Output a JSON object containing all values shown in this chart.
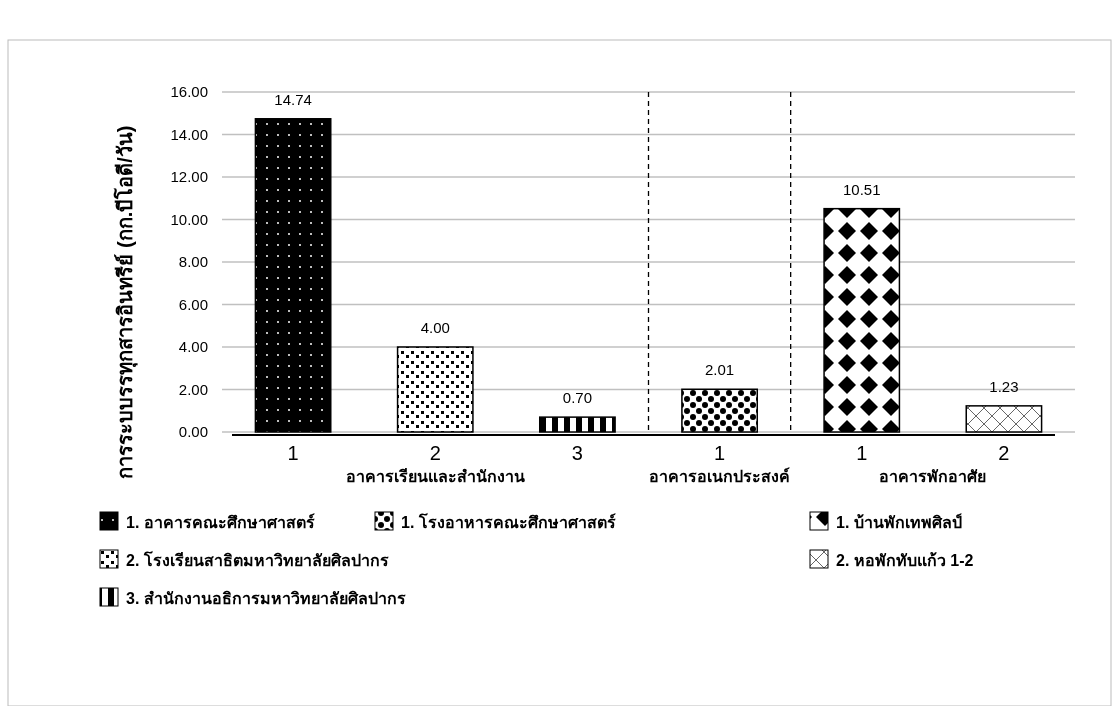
{
  "chart_data": {
    "type": "bar",
    "ylabel": "การระบบรรทุกสารอินทรีย์ (กก.บีโอดี/วัน)",
    "categories": [
      "1",
      "2",
      "3",
      "1",
      "1",
      "2"
    ],
    "series": [
      {
        "name": "1. อาคารคณะศึกษาศาสตร์",
        "color": "#000000",
        "values": [
          14.74,
          null,
          null,
          null,
          null,
          null
        ],
        "value_labels": [
          "14.74",
          null,
          null,
          null,
          null,
          null
        ]
      },
      {
        "name": "2. โรงเรียนสาธิตมหาวิทยาลัยศิลปากร",
        "color": "#000000",
        "values": [
          null,
          4.0,
          null,
          null,
          null,
          null
        ],
        "value_labels": [
          null,
          "4.00",
          null,
          null,
          null,
          null
        ]
      },
      {
        "name": "3. สำนักงานอธิการมหาวิทยาลัยศิลปากร",
        "color": "#000000",
        "values": [
          null,
          null,
          0.7,
          null,
          null,
          null
        ],
        "value_labels": [
          null,
          null,
          "0.70",
          null,
          null,
          null
        ]
      },
      {
        "name": "1. โรงอาหารคณะศึกษาศาสตร์",
        "color": "#000000",
        "values": [
          null,
          null,
          null,
          2.01,
          null,
          null
        ],
        "value_labels": [
          null,
          null,
          null,
          "2.01",
          null,
          null
        ]
      },
      {
        "name": "1. บ้านพักเทพศิลป์",
        "color": "#000000",
        "values": [
          null,
          null,
          null,
          null,
          10.51,
          null
        ],
        "value_labels": [
          null,
          null,
          null,
          null,
          "10.51",
          null
        ]
      },
      {
        "name": "2. หอพักทับแก้ว 1-2",
        "color": "#000000",
        "values": [
          null,
          null,
          null,
          null,
          null,
          1.23
        ],
        "value_labels": [
          null,
          null,
          null,
          null,
          null,
          "1.23"
        ]
      }
    ],
    "ylim": [
      0,
      16
    ],
    "yticks": [
      {
        "value": 0,
        "label": "0.00"
      },
      {
        "value": 2,
        "label": "2.00"
      },
      {
        "value": 4,
        "label": "4.00"
      },
      {
        "value": 6,
        "label": "6.00"
      },
      {
        "value": 8,
        "label": "8.00"
      },
      {
        "value": 10,
        "label": "10.00"
      },
      {
        "value": 12,
        "label": "12.00"
      },
      {
        "value": 14,
        "label": "14.00"
      },
      {
        "value": 16,
        "label": "16.00"
      }
    ],
    "grid": "y",
    "annotations": [
      "อาคารเรียนและสำนักงาน",
      "อาคารอเนกประสงค์",
      "อาคารพักอาศัย"
    ],
    "legend": "bottom"
  }
}
